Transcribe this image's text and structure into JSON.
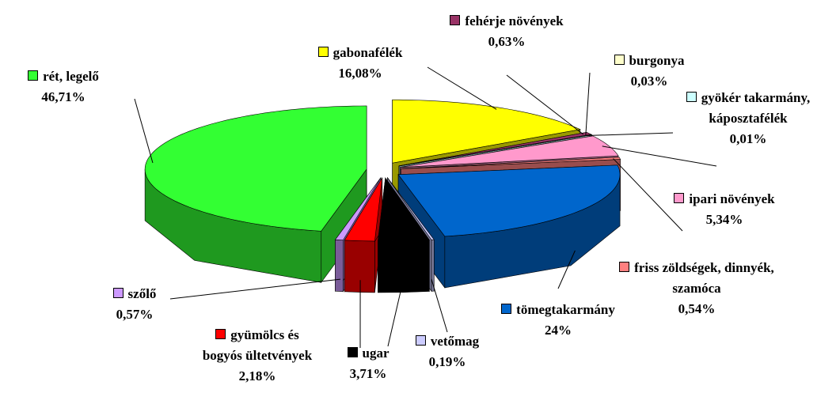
{
  "chart_data": {
    "type": "pie3d",
    "categories": [
      "gabonafélék",
      "fehérje növények",
      "burgonya",
      "gyökér takarmány, káposztafélék",
      "ipari növények",
      "friss zöldségek, dinnyék, szamóca",
      "tömegtakarmány",
      "vetőmag",
      "ugar",
      "gyümölcs és bogyós ültetvények",
      "szőlő",
      "rét, legelő"
    ],
    "values": [
      16.08,
      0.63,
      0.03,
      0.01,
      5.34,
      0.54,
      24,
      0.19,
      3.71,
      2.18,
      0.57,
      46.71
    ],
    "value_labels": [
      "16,08%",
      "0,63%",
      "0,03%",
      "0,01%",
      "5,34%",
      "0,54%",
      "24%",
      "0,19%",
      "3,71%",
      "2,18%",
      "0,57%",
      "46,71%"
    ],
    "colors": [
      "#ffff00",
      "#993366",
      "#ffffcc",
      "#ccffff",
      "#ff99cc",
      "#ff8080",
      "#0066cc",
      "#ccccff",
      "#000000",
      "#ff0000",
      "#cc99ff",
      "#33ff33"
    ]
  }
}
